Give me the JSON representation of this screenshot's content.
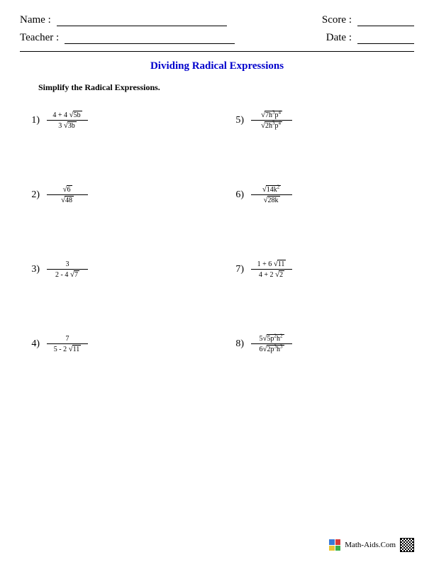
{
  "header": {
    "name_label": "Name :",
    "teacher_label": "Teacher :",
    "score_label": "Score :",
    "date_label": "Date :"
  },
  "title": "Dividing Radical Expressions",
  "instruction": "Simplify the Radical Expressions.",
  "problems": [
    {
      "n": "1)",
      "num": {
        "pre": "4 + 4 ",
        "rad": "5b"
      },
      "den": {
        "pre": "3 ",
        "rad": "3b"
      }
    },
    {
      "n": "5)",
      "num": {
        "pre": "",
        "rad": "7h<span class='sup'>3</span>p<span class='sup'>4</span>"
      },
      "den": {
        "pre": "",
        "rad": "2h<span class='sup'>3</span>p<span class='sup'>4</span>"
      }
    },
    {
      "n": "2)",
      "num": {
        "pre": "",
        "rad": "6"
      },
      "den": {
        "pre": "",
        "rad": "48"
      }
    },
    {
      "n": "6)",
      "num": {
        "pre": "",
        "rad": "14k<span class='sup'>2</span>"
      },
      "den": {
        "pre": "",
        "rad": "28k"
      }
    },
    {
      "n": "3)",
      "num": {
        "pre": "3",
        "rad": ""
      },
      "den": {
        "pre": "2 - 4 ",
        "rad": "7"
      }
    },
    {
      "n": "7)",
      "num": {
        "pre": "1 + 6 ",
        "rad": "11"
      },
      "den": {
        "pre": "4 + 2 ",
        "rad": "2"
      }
    },
    {
      "n": "4)",
      "num": {
        "pre": "7",
        "rad": ""
      },
      "den": {
        "pre": "5 - 2 ",
        "rad": "11"
      }
    },
    {
      "n": "8)",
      "num": {
        "pre": "5",
        "rad": "5p<span class='sup'>2</span>h<span class='sup'>2</span>"
      },
      "den": {
        "pre": "6",
        "rad": "2p<span class='sup'>3</span>h<span class='sup'>3</span>"
      }
    }
  ],
  "footer": {
    "site": "Math-Aids.Com",
    "icon_colors": [
      "#3a7ad6",
      "#d63a3a",
      "#e8c636",
      "#3ab04a"
    ]
  },
  "colors": {
    "title": "#0000cc",
    "text": "#000000",
    "bg": "#ffffff"
  }
}
